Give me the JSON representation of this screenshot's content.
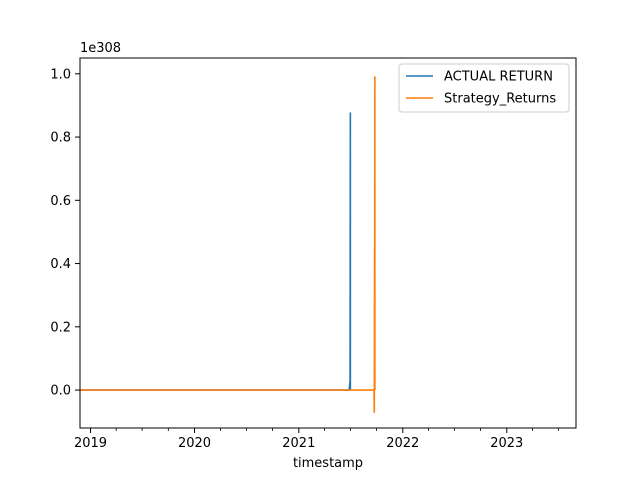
{
  "chart_data": {
    "type": "line",
    "title": "",
    "xlabel": "timestamp",
    "ylabel": "",
    "y_offset_text": "1e308",
    "x_axis_type": "date",
    "xlim": [
      "2018-11-25",
      "2023-09-01"
    ],
    "ylim": [
      -0.12,
      1.05
    ],
    "x_ticks": [
      {
        "date": "2019-01-01",
        "label": "2019"
      },
      {
        "date": "2020-01-01",
        "label": "2020"
      },
      {
        "date": "2021-01-01",
        "label": "2021"
      },
      {
        "date": "2022-01-01",
        "label": "2022"
      },
      {
        "date": "2023-01-01",
        "label": "2023"
      }
    ],
    "x_minor_ticks": [
      "2019-04-01",
      "2019-07-01",
      "2019-10-01",
      "2020-04-01",
      "2020-07-01",
      "2020-10-01",
      "2021-04-01",
      "2021-07-01",
      "2021-10-01",
      "2022-04-01",
      "2022-07-01",
      "2022-10-01",
      "2023-04-01",
      "2023-07-01"
    ],
    "y_ticks": [
      {
        "value": 0.0,
        "label": "0.0"
      },
      {
        "value": 0.2,
        "label": "0.2"
      },
      {
        "value": 0.4,
        "label": "0.4"
      },
      {
        "value": 0.6,
        "label": "0.6"
      },
      {
        "value": 0.8,
        "label": "0.8"
      },
      {
        "value": 1.0,
        "label": "1.0"
      }
    ],
    "grid": false,
    "legend_position": "top-right",
    "series": [
      {
        "name": "ACTUAL RETURN",
        "color": "#1f77b4",
        "points": [
          [
            "2018-11-25",
            0.0
          ],
          [
            "2021-06-26",
            0.0
          ],
          [
            "2021-06-27",
            0.004
          ],
          [
            "2021-06-28",
            0.01
          ],
          [
            "2021-06-29",
            0.02
          ],
          [
            "2021-06-30",
            0.03
          ],
          [
            "2021-07-01",
            0.876
          ],
          [
            "2021-07-01",
            0.0
          ]
        ]
      },
      {
        "name": "Strategy_Returns",
        "color": "#ff7f0e",
        "points": [
          [
            "2018-11-25",
            0.0
          ],
          [
            "2021-09-22",
            0.0
          ],
          [
            "2021-09-23",
            -0.07
          ],
          [
            "2021-09-24",
            0.45
          ],
          [
            "2021-09-24",
            0.2
          ],
          [
            "2021-09-25",
            0.99
          ],
          [
            "2021-09-25",
            0.0
          ]
        ]
      }
    ]
  }
}
